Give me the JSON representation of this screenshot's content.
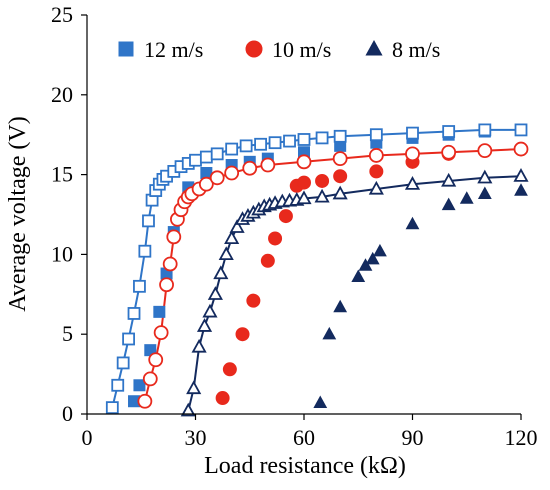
{
  "chart_data": {
    "type": "scatter",
    "title": "",
    "xlabel": "Load resistance (kΩ)",
    "ylabel": "Average voltage (V)",
    "xlim": [
      0,
      120
    ],
    "ylim": [
      0,
      25
    ],
    "xticks": [
      0,
      30,
      60,
      90,
      120
    ],
    "yticks": [
      0,
      5,
      10,
      15,
      20,
      25
    ],
    "grid": false,
    "legend_position": "top",
    "series": [
      {
        "name": "12 m/s",
        "kind": "filled-marker",
        "marker": "square",
        "color": "#2f75c8",
        "x": [
          13,
          14.5,
          17.5,
          20,
          22,
          24,
          28,
          33,
          40,
          45,
          50,
          60,
          70,
          80,
          90,
          100,
          110,
          120
        ],
        "y": [
          0.8,
          1.8,
          4,
          6.4,
          8.8,
          11.4,
          14.2,
          15.1,
          15.6,
          15.8,
          16,
          16.4,
          16.8,
          17,
          17.3,
          17.5,
          17.7,
          17.8
        ]
      },
      {
        "name": "",
        "kind": "open-marker-fitted-line",
        "marker": "square",
        "color": "#2f75c8",
        "x": [
          7,
          8.5,
          10,
          11.5,
          13,
          14.5,
          16,
          17,
          18,
          19,
          20,
          21,
          22,
          24,
          26,
          28,
          30,
          33,
          36,
          40,
          44,
          48,
          52,
          56,
          60,
          65,
          70,
          80,
          90,
          100,
          110,
          120
        ],
        "y": [
          0.4,
          1.8,
          3.2,
          4.7,
          6.3,
          8,
          10.2,
          12.1,
          13.4,
          14,
          14.4,
          14.7,
          14.9,
          15.2,
          15.5,
          15.7,
          15.9,
          16.1,
          16.3,
          16.6,
          16.8,
          16.9,
          17,
          17.1,
          17.2,
          17.3,
          17.4,
          17.5,
          17.6,
          17.7,
          17.8,
          17.8
        ]
      },
      {
        "name": "10 m/s",
        "kind": "filled-marker",
        "marker": "circle",
        "color": "#e8291c",
        "x": [
          37.5,
          39.5,
          43,
          46,
          50,
          52,
          55,
          58,
          60,
          65,
          70,
          80,
          90,
          100,
          110,
          120
        ],
        "y": [
          1,
          2.8,
          5,
          7.1,
          9.6,
          11,
          12.4,
          14.3,
          14.5,
          14.6,
          14.9,
          15.2,
          15.8,
          16.3,
          16.5,
          16.6
        ]
      },
      {
        "name": "",
        "kind": "open-marker-fitted-line",
        "marker": "circle",
        "color": "#e8291c",
        "x": [
          16,
          17.5,
          19,
          20.5,
          22,
          23,
          24,
          25,
          26,
          27,
          28,
          29,
          31,
          33,
          36,
          40,
          45,
          50,
          60,
          70,
          80,
          90,
          100,
          110,
          120
        ],
        "y": [
          0.8,
          2.2,
          3.4,
          5.1,
          8.1,
          9.4,
          11.1,
          12.2,
          12.8,
          13.3,
          13.6,
          13.8,
          14.1,
          14.4,
          14.8,
          15.1,
          15.4,
          15.6,
          15.8,
          16,
          16.2,
          16.3,
          16.4,
          16.5,
          16.6
        ]
      },
      {
        "name": "8 m/s",
        "kind": "filled-marker",
        "marker": "triangle",
        "color": "#132a5e",
        "x": [
          64.5,
          67,
          70,
          75,
          77,
          79,
          81,
          90,
          100,
          105,
          110,
          120
        ],
        "y": [
          0.7,
          5,
          6.7,
          8.6,
          9.3,
          9.7,
          10.2,
          11.9,
          13.1,
          13.5,
          13.8,
          14
        ]
      },
      {
        "name": "",
        "kind": "open-marker-fitted-line",
        "marker": "triangle",
        "color": "#132a5e",
        "x": [
          28,
          29.5,
          31,
          32.5,
          34,
          35.5,
          37,
          38.5,
          40,
          41.5,
          43,
          44.5,
          46,
          47.5,
          49,
          50.5,
          52,
          54,
          56,
          58,
          60,
          65,
          70,
          80,
          90,
          100,
          110,
          120
        ],
        "y": [
          0.2,
          1.6,
          4.2,
          5.5,
          6.4,
          7.5,
          8.8,
          10,
          11,
          11.7,
          12.2,
          12.4,
          12.6,
          12.8,
          13,
          13.1,
          13.2,
          13.3,
          13.35,
          13.4,
          13.5,
          13.6,
          13.8,
          14.1,
          14.4,
          14.6,
          14.8,
          14.9
        ]
      }
    ]
  }
}
